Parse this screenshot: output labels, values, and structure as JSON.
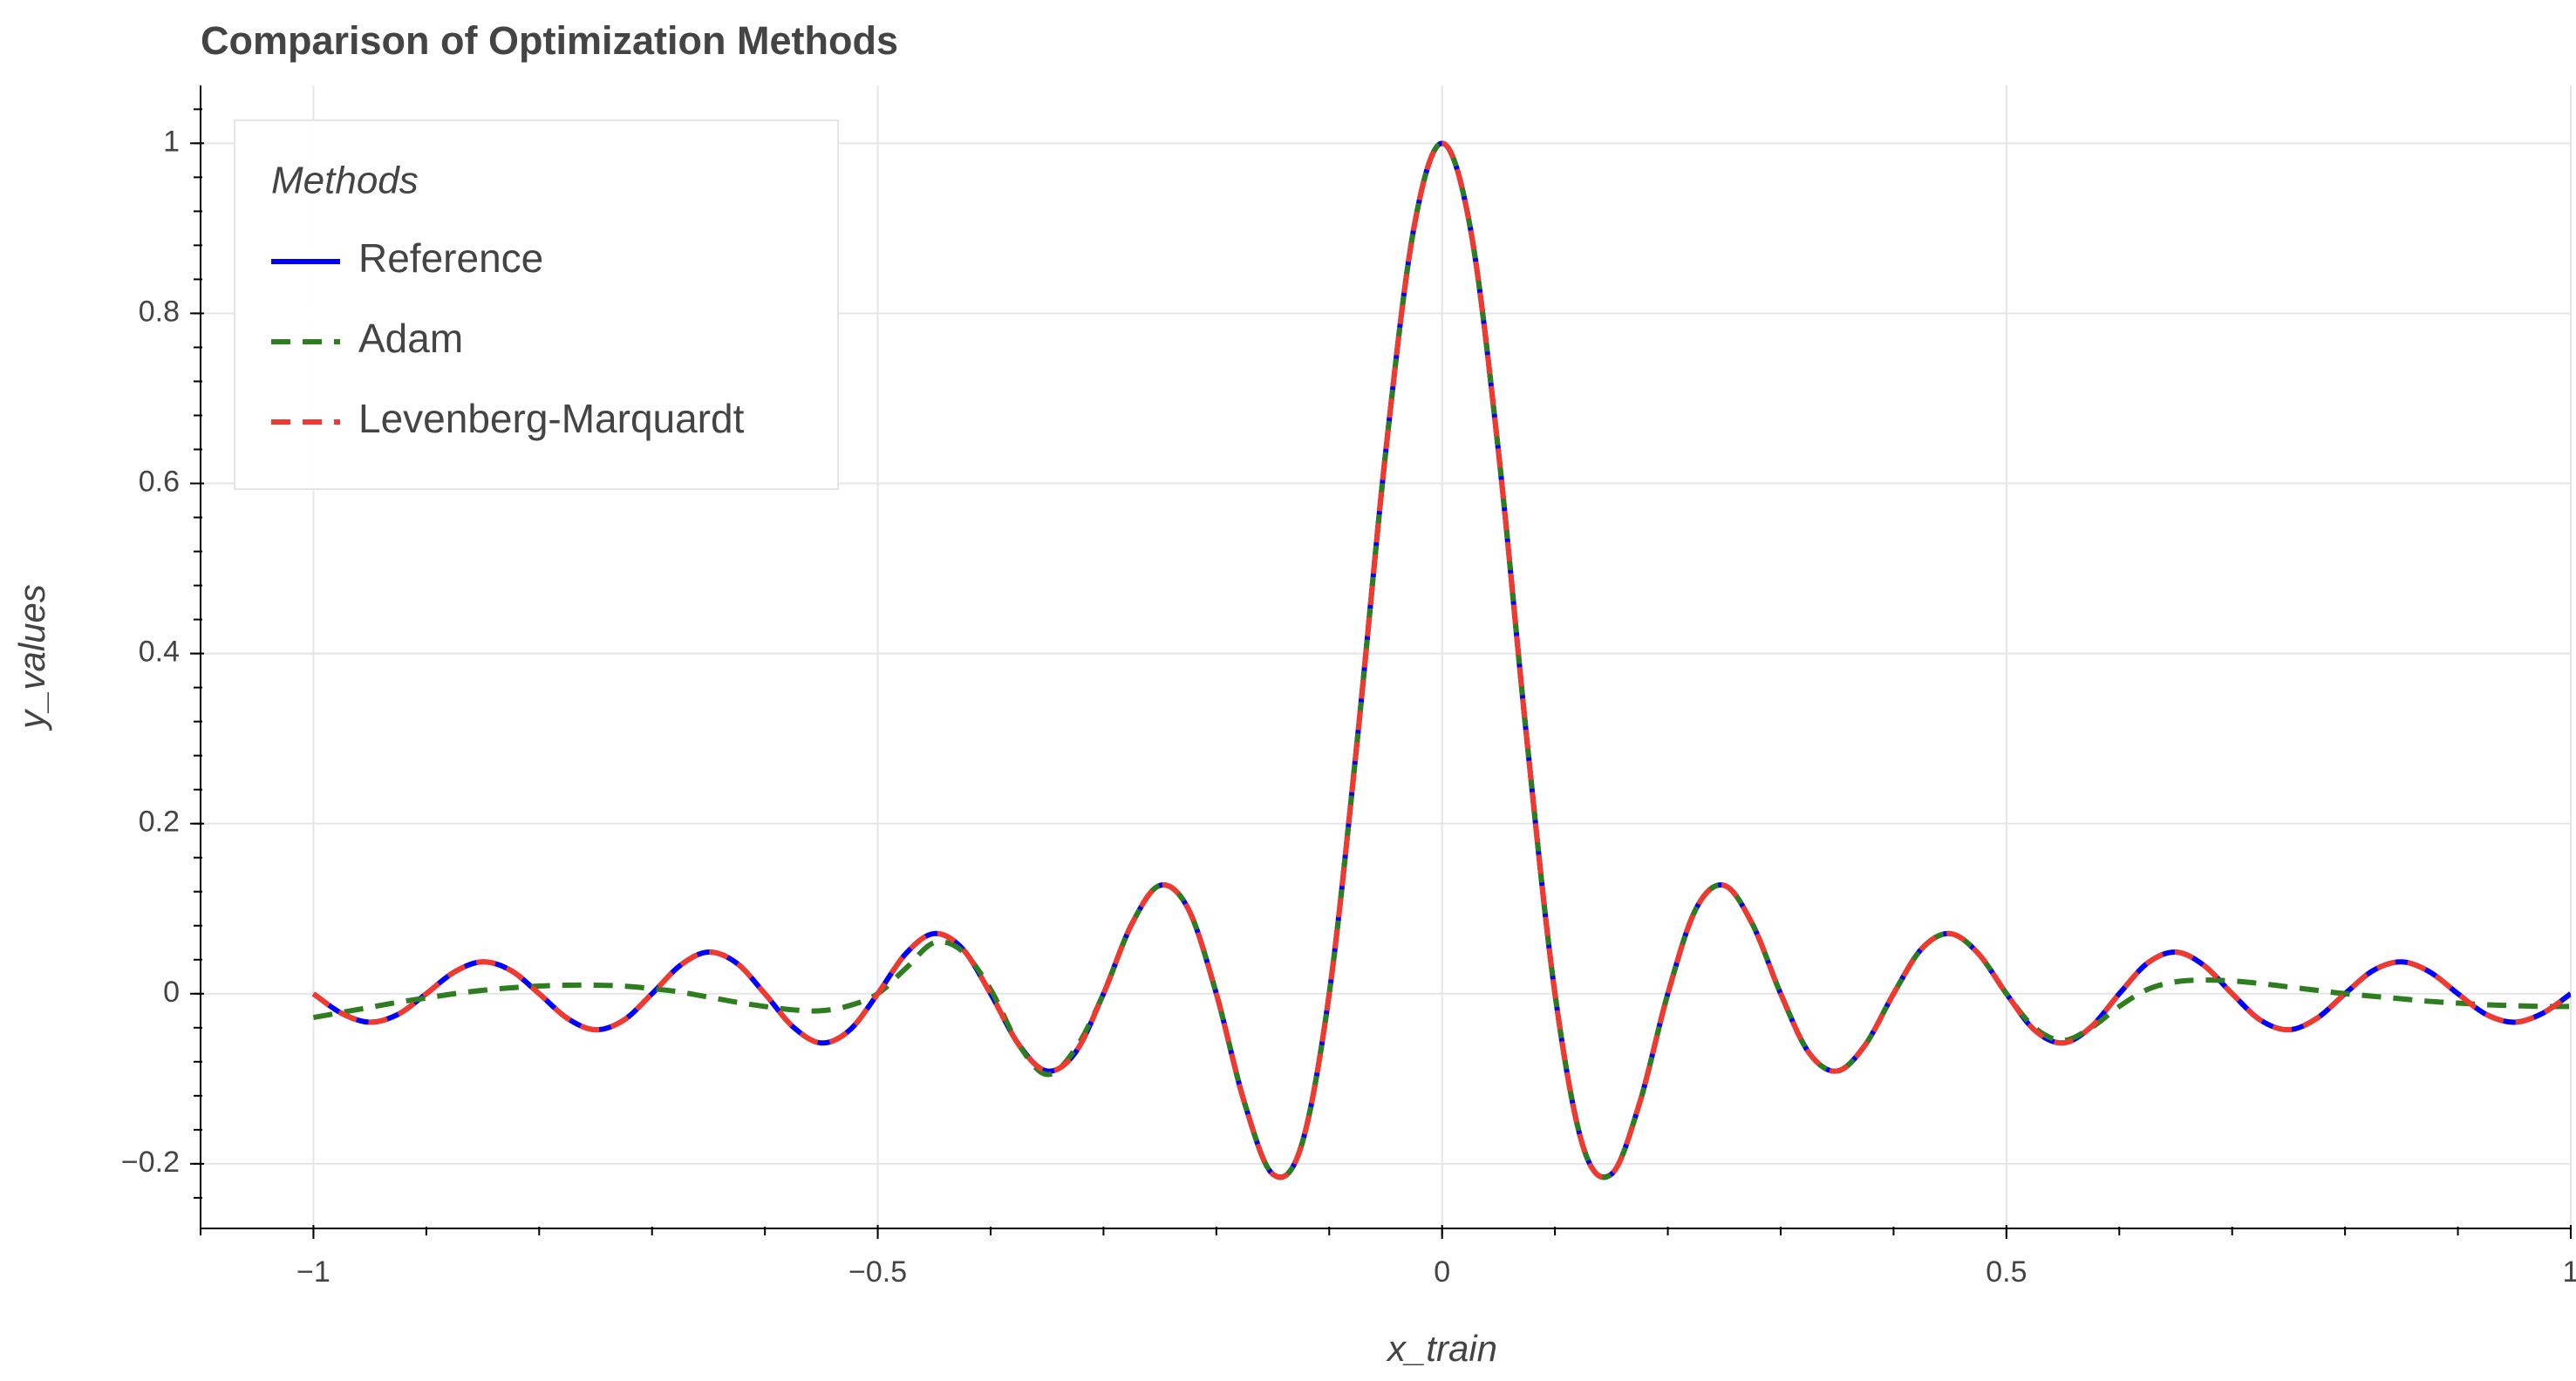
{
  "chart_data": {
    "type": "line",
    "title": "Comparison of Optimization Methods",
    "xlabel": "x_train",
    "ylabel": "y_values",
    "legend_title": "Methods",
    "legend": "top-left",
    "grid": true,
    "xlim": [
      -1.1,
      1.0
    ],
    "ylim": [
      -0.276,
      1.068
    ],
    "xticks": [
      {
        "value": -1,
        "label": "−1"
      },
      {
        "value": -0.5,
        "label": "−0.5"
      },
      0,
      0.5,
      1
    ],
    "yticks": [
      {
        "value": -0.2,
        "label": "−0.2"
      },
      0,
      0.2,
      0.4,
      0.6,
      0.8,
      1
    ],
    "x": [
      -1,
      -0.975,
      -0.95,
      -0.925,
      -0.9,
      -0.875,
      -0.85,
      -0.825,
      -0.8,
      -0.775,
      -0.75,
      -0.725,
      -0.7,
      -0.675,
      -0.65,
      -0.625,
      -0.6,
      -0.575,
      -0.55,
      -0.525,
      -0.5,
      -0.475,
      -0.45,
      -0.425,
      -0.4,
      -0.375,
      -0.35,
      -0.325,
      -0.3,
      -0.275,
      -0.25,
      -0.225,
      -0.2,
      -0.175,
      -0.15,
      -0.125,
      -0.1,
      -0.075,
      -0.05,
      -0.025,
      0,
      0.025,
      0.05,
      0.075,
      0.1,
      0.125,
      0.15,
      0.175,
      0.2,
      0.225,
      0.25,
      0.275,
      0.3,
      0.325,
      0.35,
      0.375,
      0.4,
      0.425,
      0.45,
      0.475,
      0.5,
      0.525,
      0.55,
      0.575,
      0.6,
      0.625,
      0.65,
      0.675,
      0.7,
      0.725,
      0.75,
      0.775,
      0.8,
      0.825,
      0.85,
      0.875,
      0.9,
      0.925,
      0.95,
      0.975,
      1
    ],
    "series": [
      {
        "name": "Reference",
        "color": "#0000ff",
        "dashed": false,
        "values": [
          0,
          -0.0231,
          -0.0335,
          -0.0243,
          0,
          0.0257,
          0.0374,
          0.0273,
          0,
          -0.029,
          -0.0424,
          -0.031,
          0,
          0.0333,
          0.049,
          0.036,
          0,
          -0.0391,
          -0.0579,
          -0.0429,
          0,
          0.0474,
          0.0707,
          0.053,
          0,
          -0.06,
          -0.0909,
          -0.0693,
          0,
          0.0818,
          0.1273,
          0.1,
          0,
          -0.1286,
          -0.2122,
          -0.1801,
          0,
          0.3001,
          0.6366,
          0.9003,
          1,
          0.9003,
          0.6366,
          0.3001,
          0,
          -0.1801,
          -0.2122,
          -0.1286,
          0,
          0.1,
          0.1273,
          0.0818,
          0,
          -0.0693,
          -0.0909,
          -0.06,
          0,
          0.053,
          0.0707,
          0.0474,
          0,
          -0.0429,
          -0.0579,
          -0.0391,
          0,
          0.036,
          0.049,
          0.0333,
          0,
          -0.031,
          -0.0424,
          -0.029,
          0,
          0.0273,
          0.0374,
          0.0257,
          0,
          -0.0243,
          -0.0335,
          -0.0231,
          0
        ]
      },
      {
        "name": "Adam",
        "color": "#2e7d1e",
        "dashed": true,
        "values": [
          -0.028,
          -0.022,
          -0.016,
          -0.01,
          -0.005,
          0,
          0.004,
          0.007,
          0.009,
          0.01,
          0.01,
          0.009,
          0.006,
          0.002,
          -0.004,
          -0.01,
          -0.015,
          -0.019,
          -0.02,
          -0.014,
          0,
          0.03,
          0.06,
          0.05,
          0.005,
          -0.06,
          -0.095,
          -0.065,
          0,
          0.0818,
          0.1273,
          0.1,
          0,
          -0.1286,
          -0.2122,
          -0.1801,
          0,
          0.3001,
          0.6366,
          0.9003,
          1,
          0.9003,
          0.6366,
          0.3001,
          0,
          -0.1801,
          -0.2122,
          -0.1286,
          0,
          0.1,
          0.1273,
          0.0818,
          0,
          -0.0693,
          -0.0909,
          -0.06,
          0,
          0.053,
          0.0707,
          0.0474,
          0,
          -0.04,
          -0.055,
          -0.04,
          -0.015,
          0.005,
          0.014,
          0.016,
          0.015,
          0.012,
          0.008,
          0.004,
          0,
          -0.003,
          -0.006,
          -0.009,
          -0.011,
          -0.013,
          -0.014,
          -0.015,
          -0.015
        ]
      },
      {
        "name": "Levenberg-Marquardt",
        "color": "#f03a2e",
        "dashed": true,
        "values": [
          0,
          -0.0231,
          -0.0335,
          -0.0243,
          0,
          0.0257,
          0.0374,
          0.0273,
          0,
          -0.029,
          -0.0424,
          -0.031,
          0,
          0.0333,
          0.049,
          0.036,
          0,
          -0.0391,
          -0.0579,
          -0.0429,
          0,
          0.0474,
          0.0707,
          0.053,
          0,
          -0.06,
          -0.0909,
          -0.0693,
          0,
          0.0818,
          0.1273,
          0.1,
          0,
          -0.1286,
          -0.2122,
          -0.1801,
          0,
          0.3001,
          0.6366,
          0.9003,
          1,
          0.9003,
          0.6366,
          0.3001,
          0,
          -0.1801,
          -0.2122,
          -0.1286,
          0,
          0.1,
          0.1273,
          0.0818,
          0,
          -0.0693,
          -0.0909,
          -0.06,
          0,
          0.053,
          0.0707,
          0.0474,
          0,
          -0.0429,
          -0.0579,
          -0.0391,
          0,
          0.036,
          0.049,
          0.0333,
          0,
          -0.031,
          -0.0424,
          -0.029,
          0,
          0.0273,
          0.0374,
          0.0257,
          0,
          -0.0243,
          -0.0335,
          -0.0231,
          0
        ]
      }
    ]
  }
}
